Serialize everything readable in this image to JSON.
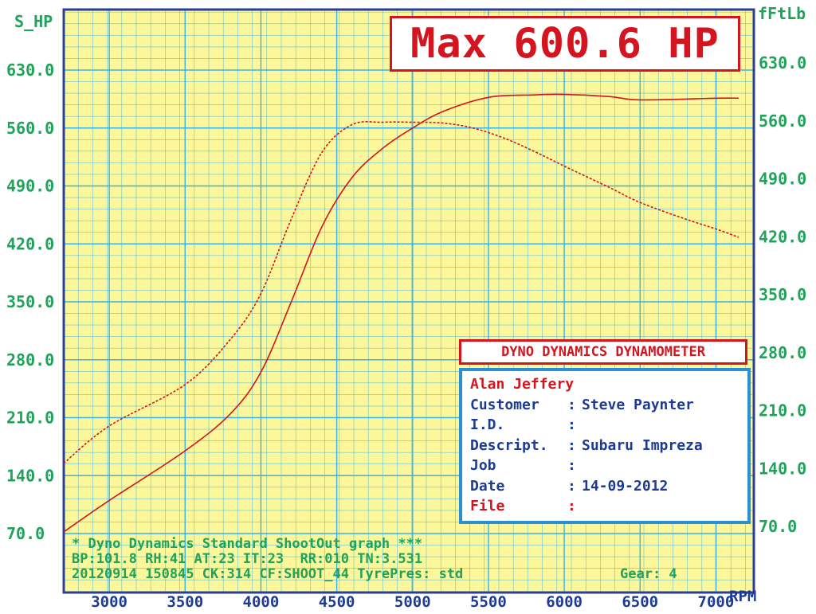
{
  "chart_data": {
    "type": "line",
    "title": "",
    "x": [
      2700,
      3000,
      3500,
      3800,
      4000,
      4200,
      4400,
      4600,
      5000,
      5500,
      6000,
      6500,
      7000,
      7150
    ],
    "xlabel": "RPM",
    "xlim": [
      2700,
      7250
    ],
    "xticks": [
      3000,
      3500,
      4000,
      4500,
      5000,
      5500,
      6000,
      6500,
      7000
    ],
    "ylabel_left": "S_HP",
    "ylabel_right": "fFtLb",
    "ylim": [
      70,
      650
    ],
    "yticks_left": [
      "630.0",
      "560.0",
      "490.0",
      "420.0",
      "350.0",
      "280.0",
      "210.0",
      "140.0",
      "70.0"
    ],
    "yticks_right": [
      "630.0",
      "560.0",
      "490.0",
      "420.0",
      "350.0",
      "280.0",
      "210.0",
      "140.0",
      "70.0"
    ],
    "grid": true,
    "series": [
      {
        "name": "",
        "style": "solid",
        "color": "#d4141e",
        "x": [
          2700,
          3000,
          3500,
          3800,
          4000,
          4200,
          4400,
          4600,
          4800,
          5000,
          5200,
          5500,
          5800,
          6000,
          6300,
          6500,
          7000,
          7150
        ],
        "y": [
          72,
          110,
          170,
          215,
          265,
          350,
          440,
          500,
          535,
          560,
          580,
          597,
          600,
          600.6,
          598,
          594,
          596,
          596
        ]
      },
      {
        "name": "",
        "style": "dashed",
        "color": "#d4141e",
        "x": [
          2700,
          3000,
          3500,
          3800,
          4000,
          4200,
          4400,
          4600,
          4800,
          5000,
          5200,
          5400,
          5600,
          5800,
          6000,
          6300,
          6500,
          6800,
          7000,
          7150
        ],
        "y": [
          155,
          200,
          250,
          305,
          360,
          450,
          530,
          564,
          567,
          567,
          566,
          560,
          548,
          532,
          514,
          488,
          470,
          450,
          438,
          428
        ]
      }
    ]
  },
  "max_label": "Max 600.6 HP",
  "dyno_title": "DYNO DYNAMICS DYNAMOMETER",
  "info": {
    "operator": "Alan Jeffery",
    "rows": [
      {
        "key": "Customer",
        "value": "Steve Paynter",
        "color": "#1d3a94"
      },
      {
        "key": "I.D.",
        "value": "",
        "color": "#1d3a94"
      },
      {
        "key": "Descript.",
        "value": "Subaru Impreza",
        "color": "#1d3a94"
      },
      {
        "key": "Job",
        "value": "",
        "color": "#1d3a94"
      },
      {
        "key": "Date",
        "value": "14-09-2012",
        "color": "#1d3a94"
      },
      {
        "key": "File",
        "value": "",
        "color": "#d4141e"
      }
    ]
  },
  "footer": {
    "line1": "* Dyno Dynamics Standard ShootOut graph ***",
    "line2": "BP:101.8 RH:41 AT:23 IT:23  RR:010 TN:3.531",
    "line3": "20120914 150845 CK:314 CF:SHOOT_44 TyrePres: std",
    "gear": "Gear: 4"
  },
  "colors": {
    "grid": "#38b2e8",
    "background": "#fbf79a",
    "frame": "#2a3f9a",
    "curve": "#d4141e",
    "label_green": "#1fa35a",
    "label_blue": "#1d3a94"
  }
}
